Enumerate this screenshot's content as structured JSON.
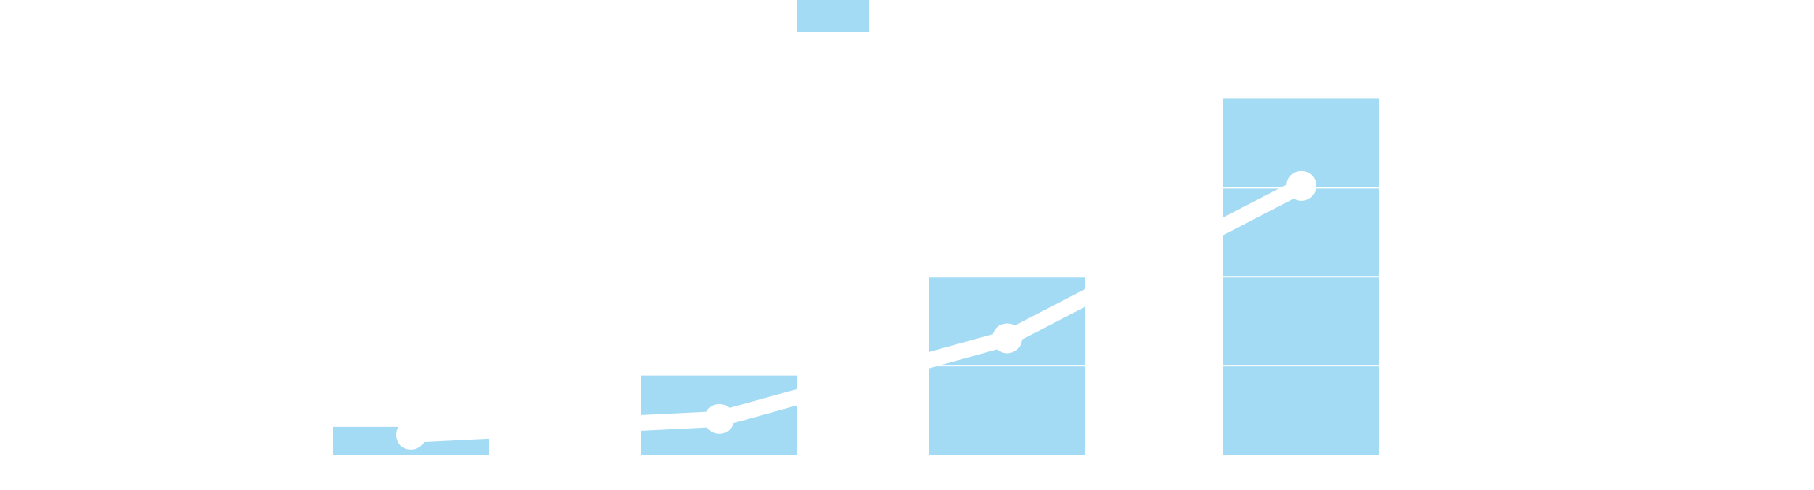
{
  "chart_data": {
    "type": "bar",
    "categories": [
      "",
      "",
      "",
      ""
    ],
    "values": [
      35,
      100,
      225,
      450
    ],
    "ylim": [
      0,
      575
    ],
    "grid": true,
    "gridline_values": [
      112.5,
      225,
      337.5
    ],
    "overlay": {
      "type": "line",
      "values": [
        25,
        45,
        147,
        340
      ]
    },
    "legend": {
      "visible": true,
      "placement": "top",
      "swatch_count": 1
    },
    "colors": {
      "bar": "#a4dbf4",
      "line": "#ffffff",
      "gridline": "#ffffff",
      "background": "#ffffff"
    }
  }
}
